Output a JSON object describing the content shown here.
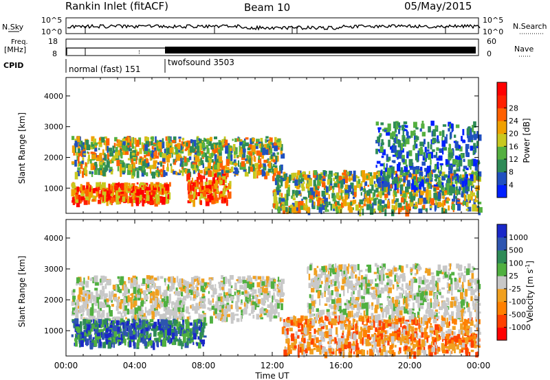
{
  "header": {
    "title": "Rankin Inlet (fitACF)",
    "beam": "Beam 10",
    "date": "05/May/2015"
  },
  "panels": {
    "nsky": {
      "label": "N.Sky",
      "right_label": "N.Search",
      "ticks_left": [
        "10^5",
        "10^0"
      ],
      "ticks_right": [
        "10^5",
        "10^0"
      ]
    },
    "freq": {
      "label_line1": "Freq.",
      "label_line2": "[MHz]",
      "right_label": "Nave",
      "ticks_left": [
        "18",
        "8"
      ],
      "ticks_right": [
        "60",
        "0"
      ]
    },
    "cpid": {
      "label": "CPID",
      "modes": [
        {
          "name": "normal (fast) 151",
          "start": "00:00",
          "end": "06:00"
        },
        {
          "name": "twofsound 3503",
          "start": "06:00",
          "end": "24:00"
        }
      ]
    }
  },
  "chart_data": [
    {
      "type": "heatmap",
      "title": "",
      "xlabel": "Time UT",
      "ylabel": "Slant Range [km]",
      "x_ticks": [
        "00:00",
        "04:00",
        "08:00",
        "12:00",
        "16:00",
        "20:00",
        "00:00"
      ],
      "xlim_hours": [
        0,
        24
      ],
      "y_ticks": [
        1000,
        2000,
        3000,
        4000
      ],
      "ylim": [
        180,
        4600
      ],
      "colorbar": {
        "label": "Power [dB]",
        "ticks": [
          "4",
          "8",
          "12",
          "16",
          "20",
          "24",
          "28"
        ],
        "colors": [
          "#0020ff",
          "#2050c0",
          "#2e8b57",
          "#55b040",
          "#c8c820",
          "#f0a000",
          "#ff6000",
          "#ff2000",
          "#ff0000"
        ]
      },
      "scatter_bands": [
        {
          "start_h": 0.3,
          "end_h": 6.0,
          "range_km": [
            600,
            1200
          ],
          "value": "high"
        },
        {
          "start_h": 0.3,
          "end_h": 12.5,
          "range_km": [
            1500,
            2700
          ],
          "value": "medium"
        },
        {
          "start_h": 7.0,
          "end_h": 9.5,
          "range_km": [
            600,
            1500
          ],
          "value": "high"
        },
        {
          "start_h": 12.0,
          "end_h": 24.0,
          "range_km": [
            300,
            1600
          ],
          "value": "medium"
        },
        {
          "start_h": 18.0,
          "end_h": 24.0,
          "range_km": [
            1000,
            3200
          ],
          "value": "low"
        }
      ]
    },
    {
      "type": "heatmap",
      "title": "",
      "xlabel": "Time UT",
      "ylabel": "Slant Range [km]",
      "x_ticks": [
        "00:00",
        "04:00",
        "08:00",
        "12:00",
        "16:00",
        "20:00",
        "00:00"
      ],
      "xlim_hours": [
        0,
        24
      ],
      "y_ticks": [
        1000,
        2000,
        3000,
        4000
      ],
      "ylim": [
        180,
        4600
      ],
      "colorbar": {
        "label": "Velocity",
        "label_unit": "[m s",
        "label_exp": "-1",
        "label_close": "]",
        "ticks": [
          "1000",
          "500",
          "100",
          "25",
          "-25",
          "-100",
          "-500",
          "-1000"
        ],
        "colors": [
          "#1a28c8",
          "#2e55b0",
          "#2e8b57",
          "#50b040",
          "#c8c8c8",
          "#f0a020",
          "#ff8000",
          "#ff4000",
          "#ff0000"
        ]
      },
      "scatter_bands": [
        {
          "start_h": 0.3,
          "end_h": 12.5,
          "range_km": [
            1400,
            2800
          ],
          "value": "near-zero"
        },
        {
          "start_h": 0.3,
          "end_h": 8.0,
          "range_km": [
            600,
            1400
          ],
          "value": "positive"
        },
        {
          "start_h": 12.5,
          "end_h": 24.0,
          "range_km": [
            300,
            1500
          ],
          "value": "negative"
        },
        {
          "start_h": 14.0,
          "end_h": 24.0,
          "range_km": [
            1500,
            3200
          ],
          "value": "near-zero"
        }
      ]
    }
  ]
}
